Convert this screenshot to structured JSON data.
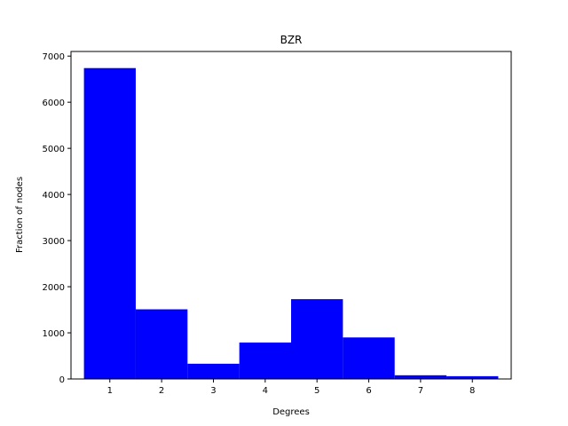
{
  "chart_data": {
    "type": "bar",
    "title": "BZR",
    "xlabel": "Degrees",
    "ylabel": "Fraction of nodes",
    "categories": [
      "1",
      "2",
      "3",
      "4",
      "5",
      "6",
      "7",
      "8"
    ],
    "x": [
      1,
      2,
      3,
      4,
      5,
      6,
      7,
      8
    ],
    "values": [
      6740,
      1510,
      330,
      790,
      1730,
      900,
      80,
      60
    ],
    "xlim": [
      0.25,
      8.75
    ],
    "ylim": [
      0,
      7100
    ],
    "yticks": [
      0,
      1000,
      2000,
      3000,
      4000,
      5000,
      6000,
      7000
    ],
    "bar_color": "#0000ff",
    "grid": false
  }
}
